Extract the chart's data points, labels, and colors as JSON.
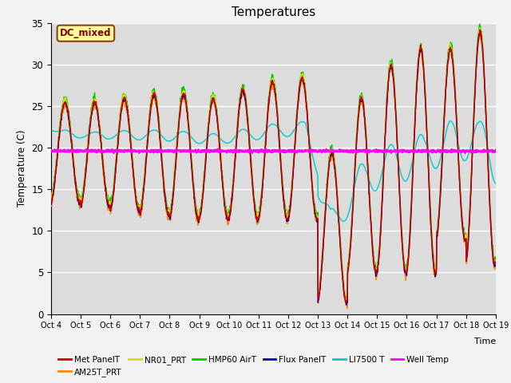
{
  "title": "Temperatures",
  "xlabel": "Time",
  "ylabel": "Temperature (C)",
  "ylim": [
    0,
    35
  ],
  "xlim": [
    0,
    15
  ],
  "x_tick_labels": [
    "Oct 4",
    "Oct 5",
    "Oct 6",
    "Oct 7",
    "Oct 8",
    "Oct 9",
    "Oct 10",
    "Oct 11",
    "Oct 12",
    "Oct 13",
    "Oct 14",
    "Oct 15",
    "Oct 16",
    "Oct 17",
    "Oct 18",
    "Oct 19"
  ],
  "well_temp": 19.6,
  "annotation_text": "DC_mixed",
  "annotation_color": "#8B0000",
  "annotation_bg": "#FFFF99",
  "annotation_border": "#8B4513",
  "series_colors": {
    "MetPanelT": "#CC0000",
    "AM25T_PRT": "#FF8800",
    "NR01_PRT": "#DDDD00",
    "HMP60_AirT": "#00CC00",
    "Flux_PanelT": "#0000BB",
    "LI7500_T": "#00CCCC",
    "Well_Temp": "#FF00FF"
  },
  "bg_color": "#DCDCDC",
  "grid_color": "#FFFFFF",
  "fig_bg": "#F2F2F2"
}
